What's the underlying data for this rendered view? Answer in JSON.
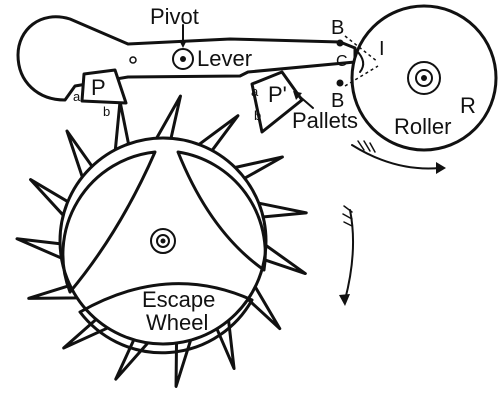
{
  "labels": {
    "pivot": "Pivot",
    "lever": "Lever",
    "pallet_entry": "P",
    "pallet_exit": "P'",
    "pallets": "Pallets",
    "b_upper": "B",
    "b_lower": "B",
    "c": "C",
    "impulse_pin": "I",
    "roller": "Roller",
    "r": "R",
    "escape_line1": "Escape",
    "escape_line2": "Wheel",
    "a_left": "a",
    "b_left": "b",
    "a_right": "a",
    "b_right": "b"
  }
}
